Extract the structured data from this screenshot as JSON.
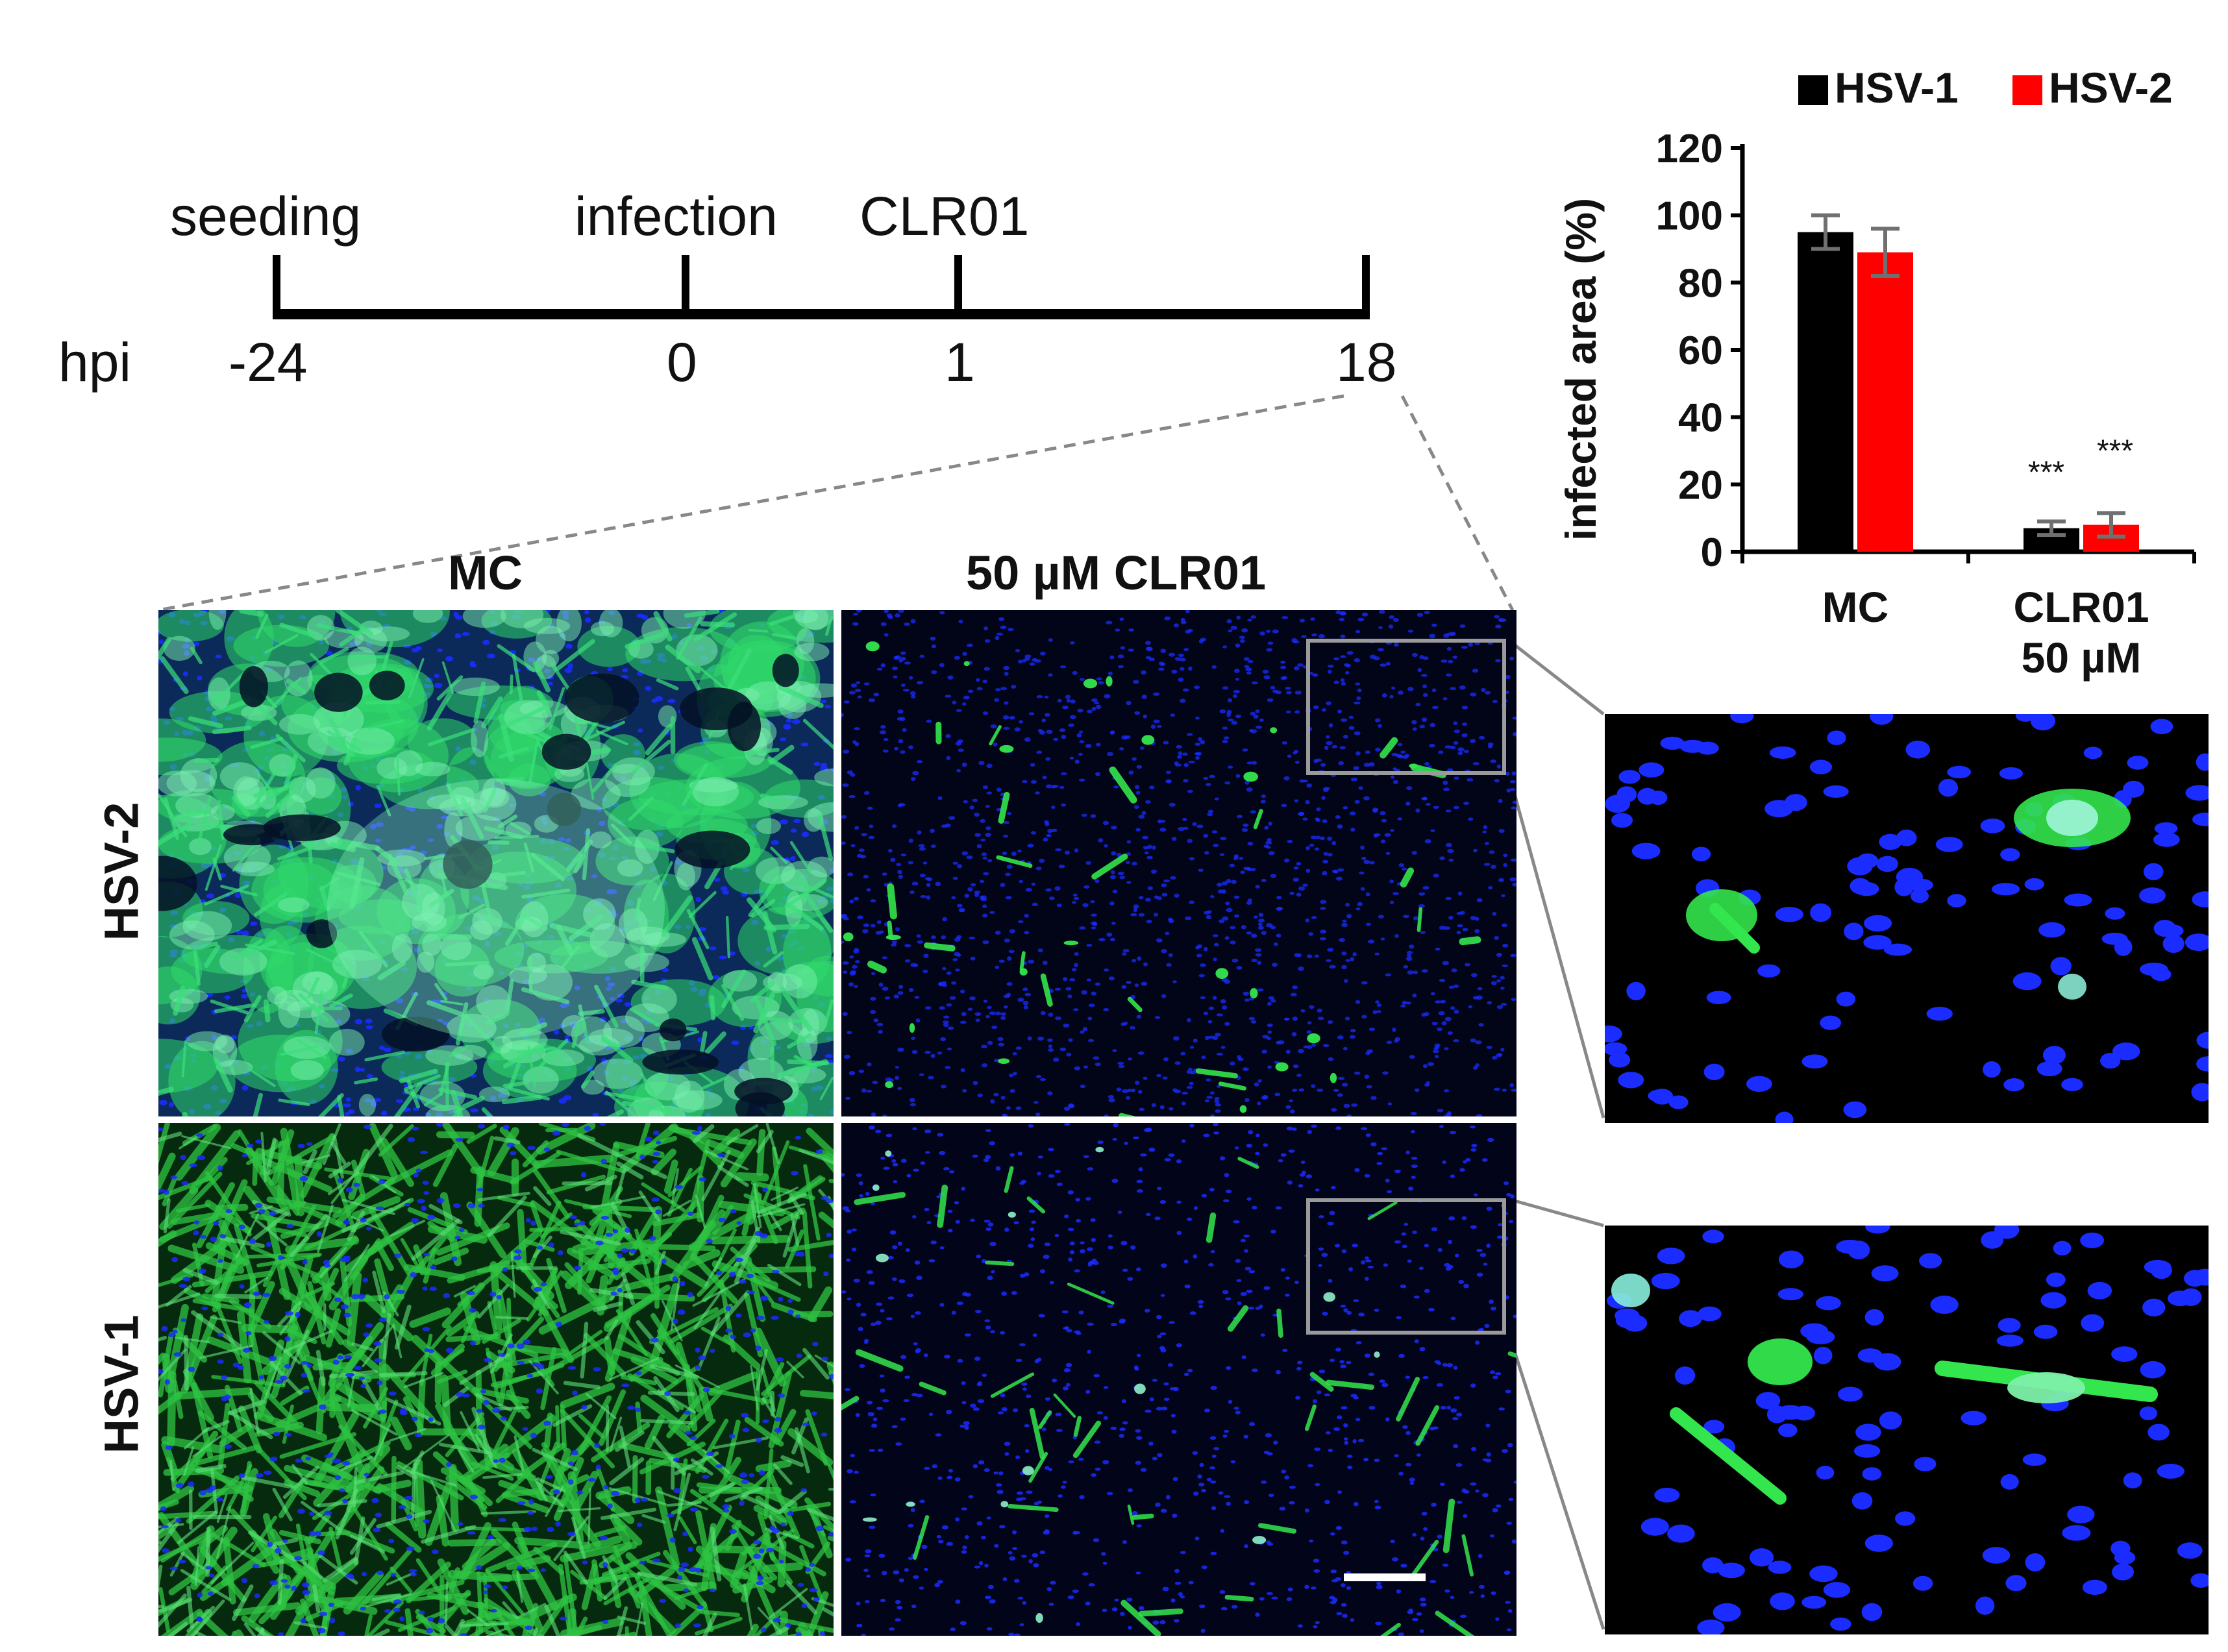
{
  "timeline": {
    "events": [
      {
        "label": "seeding",
        "time": "-24"
      },
      {
        "label": "infection",
        "time": "0"
      },
      {
        "label": "CLR01",
        "time": "1"
      },
      {
        "label": "",
        "time": "18"
      }
    ],
    "axis_label": "hpi"
  },
  "panels": {
    "col_titles": [
      "MC",
      "50 µM CLR01"
    ],
    "row_titles": [
      "HSV-2",
      "HSV-1"
    ]
  },
  "colors": {
    "hsv1": "#000000",
    "hsv2": "#ff0000",
    "nuclei": "#1a2cff",
    "infected": "#33e64d"
  },
  "chart_data": {
    "type": "bar",
    "categories": [
      "MC",
      "CLR01\n50 µM"
    ],
    "category_lines": [
      [
        "MC"
      ],
      [
        "CLR01",
        "50 µM"
      ]
    ],
    "series": [
      {
        "name": "HSV-1",
        "color": "#000000",
        "values": [
          95,
          7
        ],
        "errors": [
          5,
          2
        ]
      },
      {
        "name": "HSV-2",
        "color": "#ff0000",
        "values": [
          89,
          8
        ],
        "errors": [
          7,
          3.5
        ]
      }
    ],
    "significance": [
      "***",
      "***"
    ],
    "ylabel": "infected area (%)",
    "ylim": [
      0,
      120
    ],
    "yticks": [
      0,
      20,
      40,
      60,
      80,
      100,
      120
    ],
    "legend_position": "top"
  }
}
